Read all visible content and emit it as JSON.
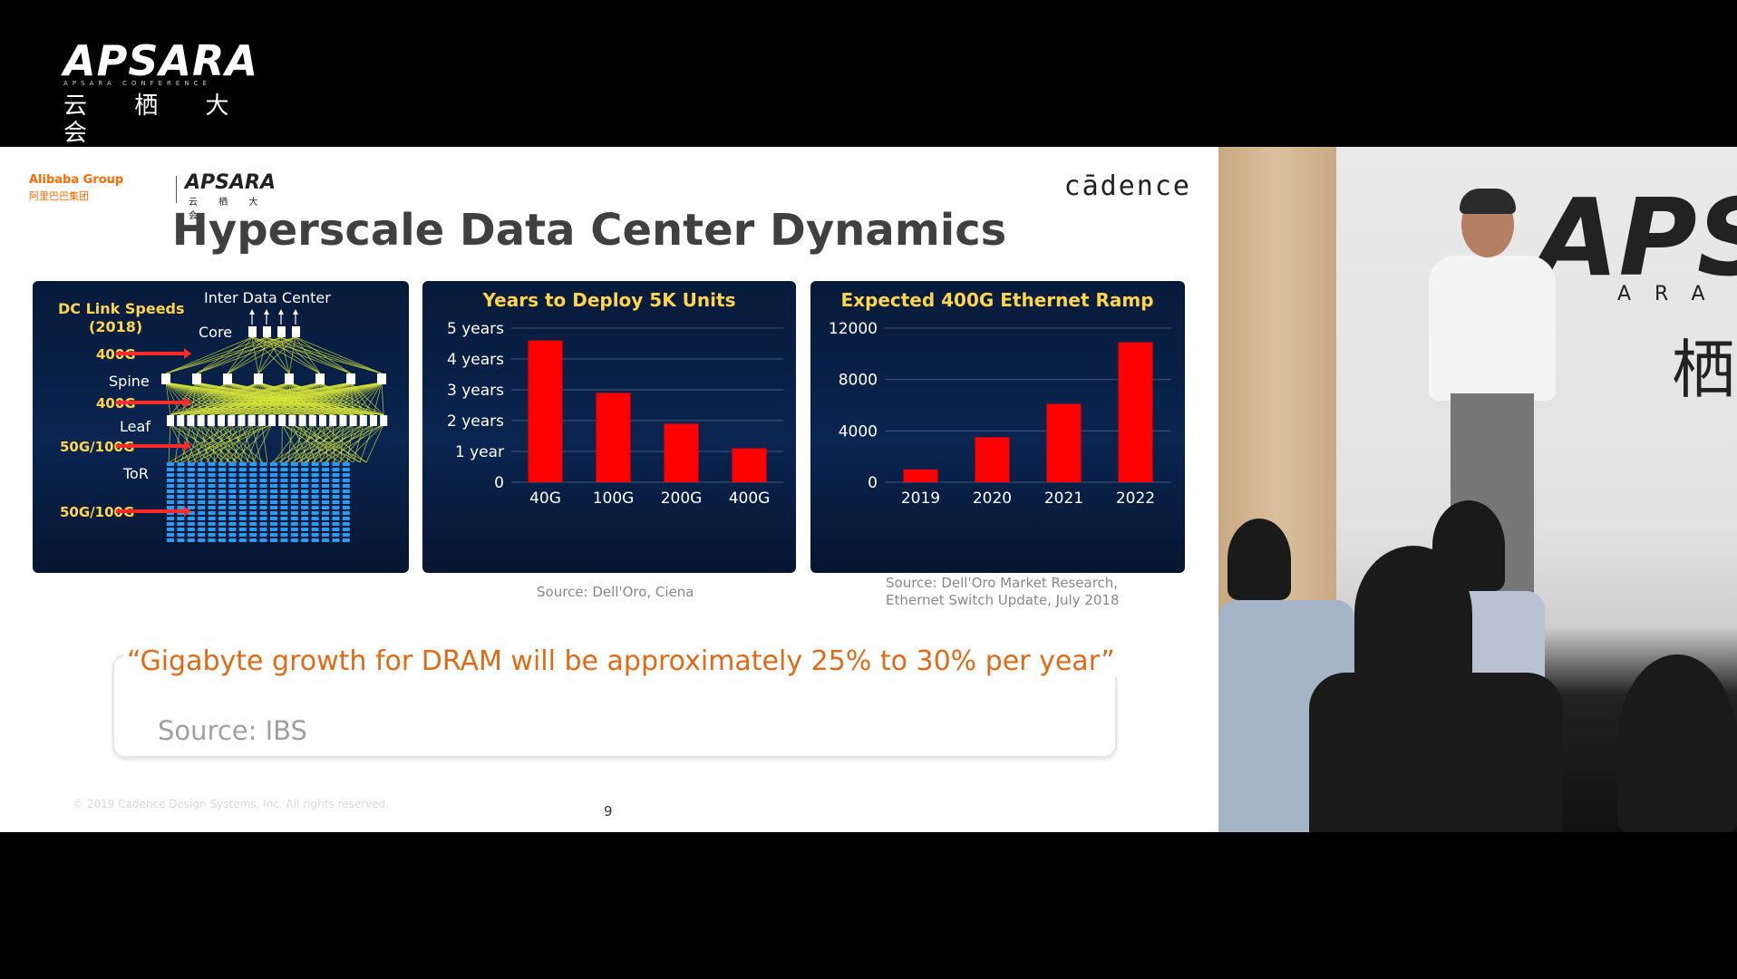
{
  "header_logo": {
    "word": "APSARA",
    "sub": "APSARA CONFERENCE",
    "cn": "云 栖 大 会"
  },
  "slide": {
    "logos": {
      "alibaba": "Alibaba Group",
      "alibaba_cn": "阿里巴巴集团",
      "apsara": "APSARA",
      "apsara_cn": "云 栖 大 会",
      "cadence": "cādence"
    },
    "title": "Hyperscale Data Center Dynamics",
    "diagram": {
      "heading": "DC Link Speeds",
      "year": "(2018)",
      "inter_dc": "Inter Data Center",
      "tiers": [
        "Core",
        "Spine",
        "Leaf",
        "ToR"
      ],
      "links": [
        "400G",
        "400G",
        "50G/100G",
        "50G/100G"
      ]
    },
    "source_1": "Source: Dell'Oro, Ciena",
    "source_2_line1": "Source: Dell'Oro Market Research,",
    "source_2_line2": "Ethernet  Switch Update, July 2018",
    "quote": "“Gigabyte growth for DRAM will be approximately 25% to 30% per year”",
    "quote_source": "Source: IBS",
    "copyright": "© 2019 Cadence Design Systems, Inc.  All rights reserved.",
    "page_number": "9"
  },
  "chart_data": [
    {
      "type": "bar",
      "title": "Years to Deploy 5K Units",
      "categories": [
        "40G",
        "100G",
        "200G",
        "400G"
      ],
      "values": [
        4.6,
        2.9,
        1.9,
        1.1
      ],
      "y_ticks": [
        {
          "value": 5,
          "label": "5 years"
        },
        {
          "value": 4,
          "label": "4 years"
        },
        {
          "value": 3,
          "label": "3 years"
        },
        {
          "value": 2,
          "label": "2 years"
        },
        {
          "value": 1,
          "label": "1 year"
        },
        {
          "value": 0,
          "label": "0"
        }
      ],
      "ylim": [
        0,
        5
      ],
      "bar_color": "#ff0000",
      "grid": true
    },
    {
      "type": "bar",
      "title": "Expected 400G Ethernet Ramp",
      "categories": [
        "2019",
        "2020",
        "2021",
        "2022"
      ],
      "values": [
        1000,
        3500,
        6100,
        10900
      ],
      "y_ticks": [
        {
          "value": 12000,
          "label": "12000"
        },
        {
          "value": 8000,
          "label": "8000"
        },
        {
          "value": 4000,
          "label": "4000"
        },
        {
          "value": 0,
          "label": "0"
        }
      ],
      "ylim": [
        0,
        12000
      ],
      "bar_color": "#ff0000",
      "grid": true
    }
  ],
  "video": {
    "wall_logo": "APS",
    "wall_sub": "ARA",
    "wall_cn": "栖"
  }
}
